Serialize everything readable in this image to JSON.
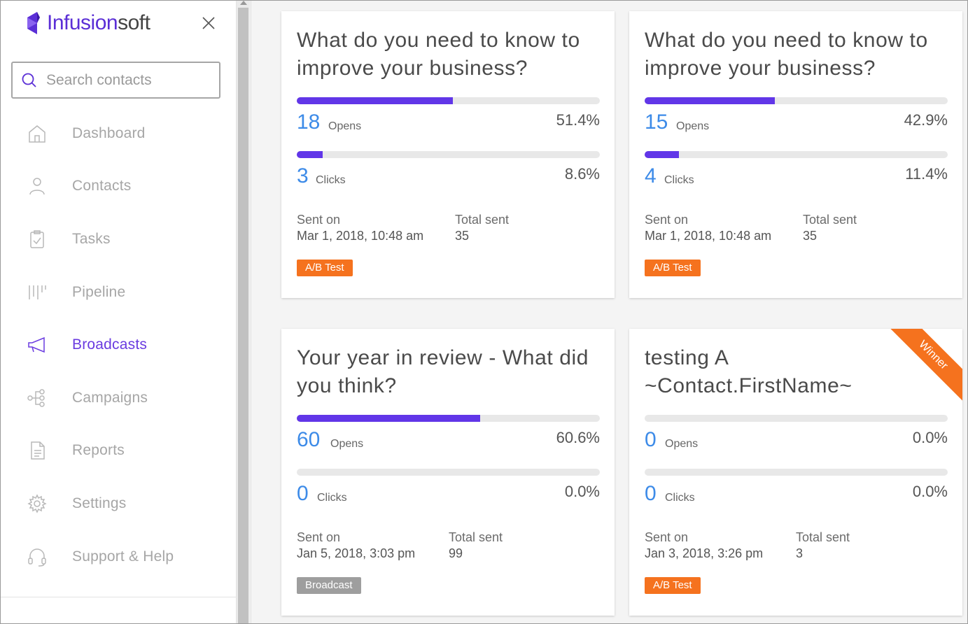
{
  "brand": {
    "name_main": "Infusion",
    "name_soft": "soft",
    "color": "#5b2fd6"
  },
  "search": {
    "placeholder": "Search contacts"
  },
  "nav": [
    {
      "label": "Dashboard",
      "icon": "home-icon"
    },
    {
      "label": "Contacts",
      "icon": "person-icon"
    },
    {
      "label": "Tasks",
      "icon": "clipboard-check-icon"
    },
    {
      "label": "Pipeline",
      "icon": "pipeline-icon"
    },
    {
      "label": "Broadcasts",
      "icon": "megaphone-icon",
      "active": true
    },
    {
      "label": "Campaigns",
      "icon": "campaign-flow-icon"
    },
    {
      "label": "Reports",
      "icon": "report-document-icon"
    },
    {
      "label": "Settings",
      "icon": "gear-icon"
    },
    {
      "label": "Support & Help",
      "icon": "headset-icon"
    }
  ],
  "accent": "#6136e8",
  "number_color": "#3d8be8",
  "tag_color": "#f5721e",
  "cards": [
    {
      "title": "What do you need to know to improve your business?",
      "opens": "18",
      "opens_label": "Opens",
      "opens_pct": "51.4%",
      "opens_fill": 0.514,
      "clicks": "3",
      "clicks_label": "Clicks",
      "clicks_pct": "8.6%",
      "clicks_fill": 0.086,
      "sent_on_label": "Sent on",
      "sent_on": "Mar 1, 2018, 10:48 am",
      "total_label": "Total sent",
      "total": "35",
      "tag": "A/B Test"
    },
    {
      "title": "What do you need to know to improve your business?",
      "opens": "15",
      "opens_label": "Opens",
      "opens_pct": "42.9%",
      "opens_fill": 0.429,
      "clicks": "4",
      "clicks_label": "Clicks",
      "clicks_pct": "11.4%",
      "clicks_fill": 0.114,
      "sent_on_label": "Sent on",
      "sent_on": "Mar 1, 2018, 10:48 am",
      "total_label": "Total sent",
      "total": "35",
      "tag": "A/B Test"
    },
    {
      "title": "Your year in review - What did you think?",
      "opens": "60",
      "opens_label": "Opens",
      "opens_pct": "60.6%",
      "opens_fill": 0.606,
      "clicks": "0",
      "clicks_label": "Clicks",
      "clicks_pct": "0.0%",
      "clicks_fill": 0,
      "sent_on_label": "Sent on",
      "sent_on": "Jan 5, 2018, 3:03 pm",
      "total_label": "Total sent",
      "total": "99",
      "tag": "Broadcast"
    },
    {
      "title": "testing A ~Contact.FirstName~",
      "ribbon": "Winner",
      "opens": "0",
      "opens_label": "Opens",
      "opens_pct": "0.0%",
      "opens_fill": 0,
      "clicks": "0",
      "clicks_label": "Clicks",
      "clicks_pct": "0.0%",
      "clicks_fill": 0,
      "sent_on_label": "Sent on",
      "sent_on": "Jan 3, 2018, 3:26 pm",
      "total_label": "Total sent",
      "total": "3",
      "tag": "A/B Test"
    }
  ]
}
